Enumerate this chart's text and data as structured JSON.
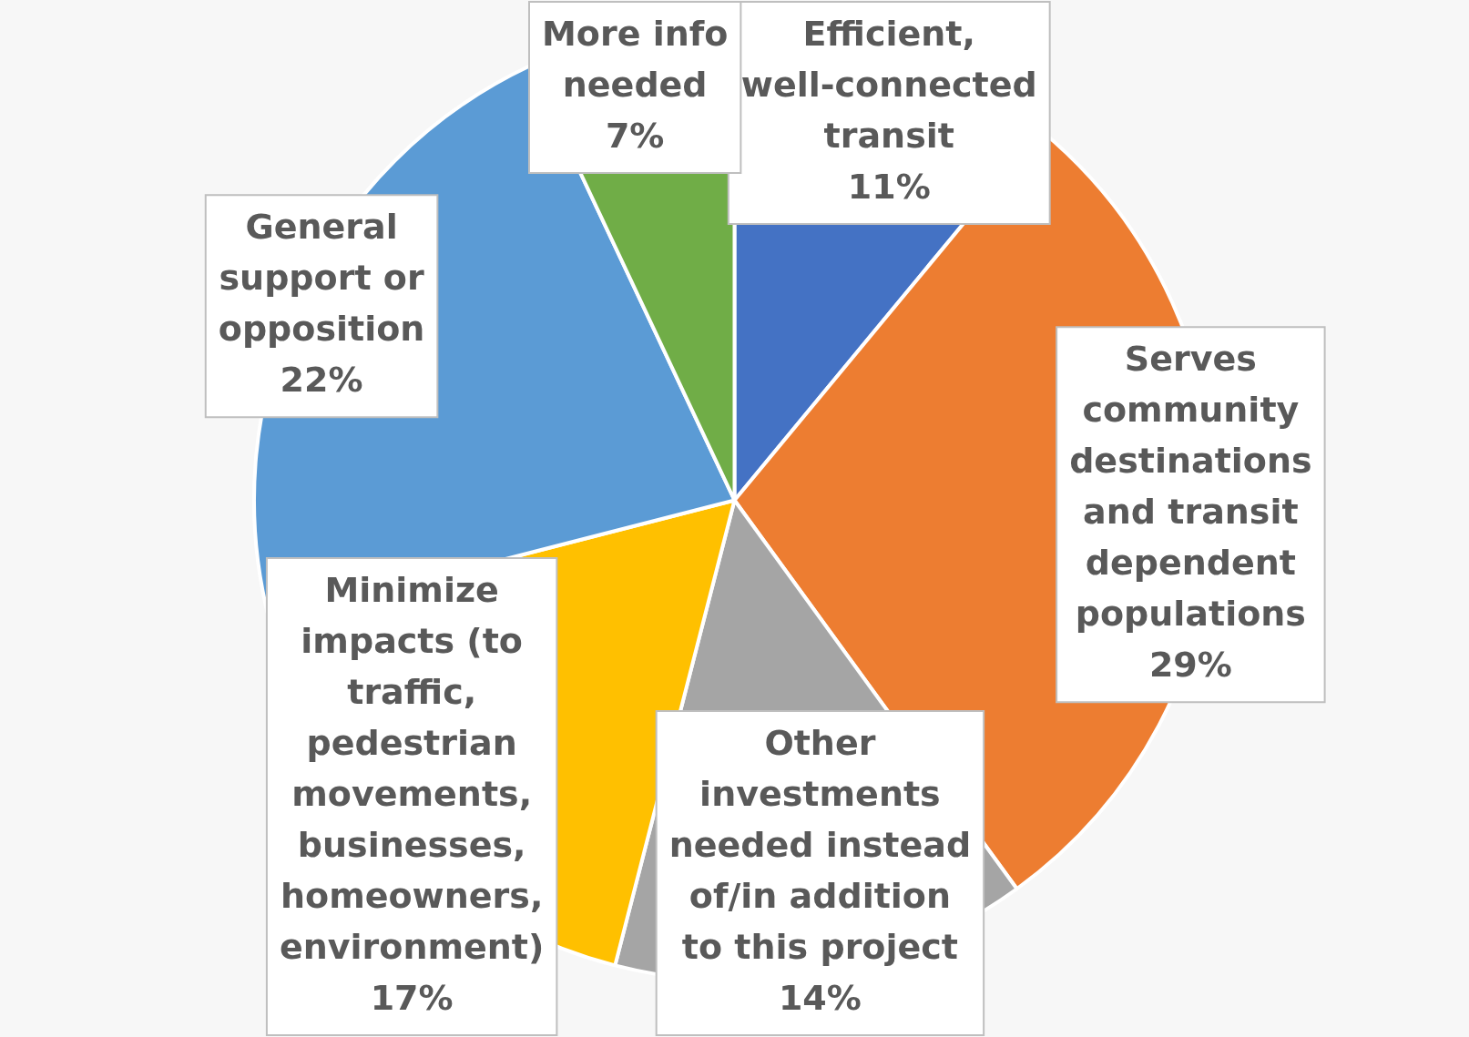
{
  "chart_data": {
    "type": "pie",
    "categories": [
      "Efficient, well-connected transit",
      "Serves community destinations and transit dependent populations",
      "Other investments needed instead of/in addition to this project",
      "Minimize impacts (to traffic, pedestrian movements, businesses, homeowners, environment)",
      "General support or opposition",
      "More info needed"
    ],
    "values": [
      11,
      29,
      14,
      17,
      22,
      7
    ],
    "colors": [
      "#4472c4",
      "#ed7d31",
      "#a5a5a5",
      "#ffc000",
      "#5b9bd5",
      "#70ad47"
    ],
    "value_labels": [
      "11%",
      "29%",
      "14%",
      "17%",
      "22%",
      "7%"
    ],
    "legend": false
  }
}
